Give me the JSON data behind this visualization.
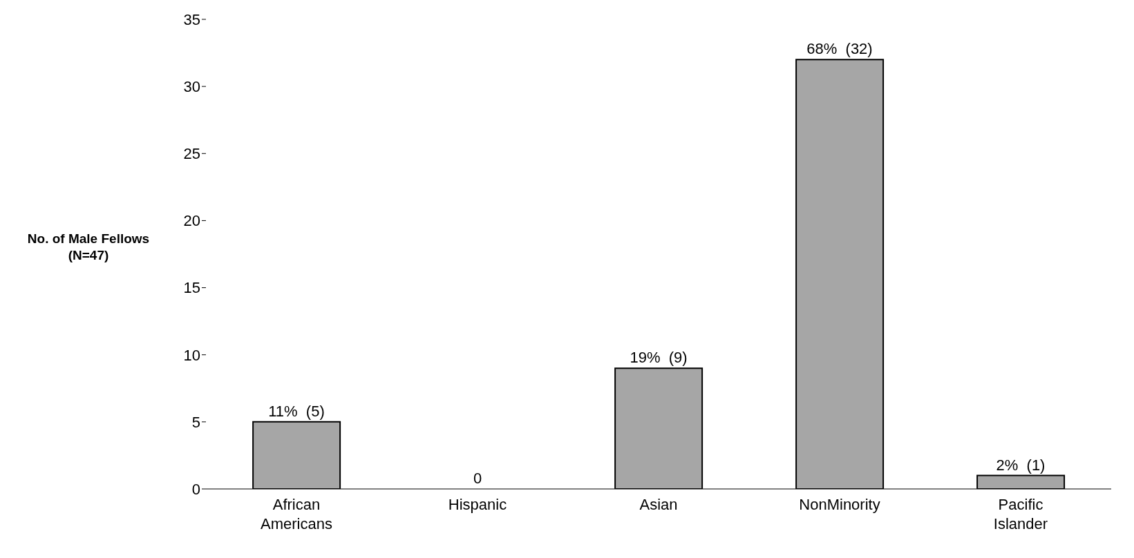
{
  "chart_data": {
    "type": "bar",
    "ylabel": "No. of Male Fellows\n(N=47)",
    "categories": [
      "African Americans",
      "Hispanic",
      "Asian",
      "NonMinority",
      "Pacific Islander"
    ],
    "values": [
      5,
      0,
      9,
      32,
      1
    ],
    "value_labels": [
      "11%  (5)",
      "0",
      "19%  (9)",
      "68%  (32)",
      "2%  (1)"
    ],
    "color": "#a6a6a6",
    "ylim": [
      0,
      35
    ],
    "yticks": [
      0,
      5,
      10,
      15,
      20,
      25,
      30,
      35
    ],
    "grid": false,
    "legend": false
  }
}
